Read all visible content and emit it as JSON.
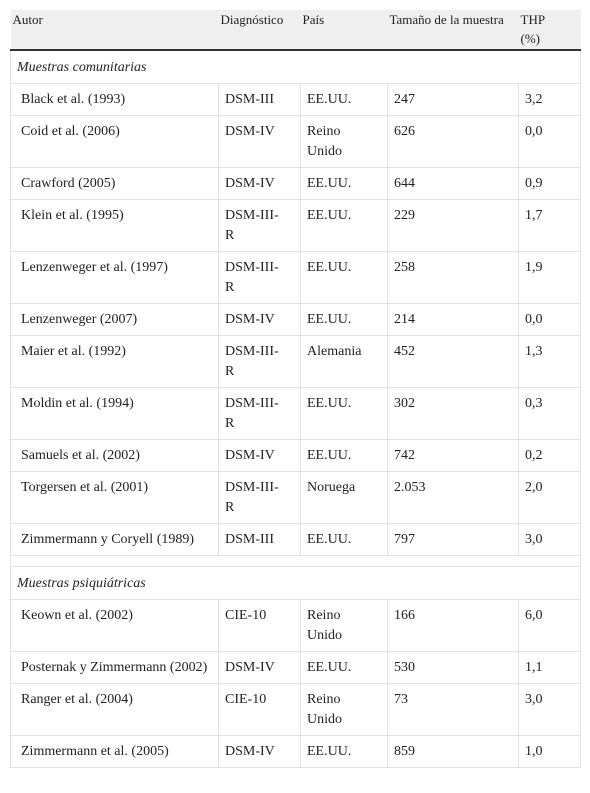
{
  "table": {
    "headers": [
      "Autor",
      "Diagnóstico",
      "País",
      "Tamaño de la muestra",
      "THP (%)"
    ],
    "sections": [
      {
        "title": "Muestras comunitarias",
        "rows": [
          [
            "Black et al. (1993)",
            "DSM-III",
            "EE.UU.",
            "247",
            "3,2"
          ],
          [
            "Coid et al. (2006)",
            "DSM-IV",
            "Reino Unido",
            "626",
            "0,0"
          ],
          [
            "Crawford (2005)",
            "DSM-IV",
            "EE.UU.",
            "644",
            "0,9"
          ],
          [
            "Klein et al. (1995)",
            "DSM-III-R",
            "EE.UU.",
            "229",
            "1,7"
          ],
          [
            "Lenzenweger et al. (1997)",
            "DSM-III-R",
            "EE.UU.",
            "258",
            "1,9"
          ],
          [
            "Lenzenweger (2007)",
            "DSM-IV",
            "EE.UU.",
            "214",
            "0,0"
          ],
          [
            "Maier et al. (1992)",
            "DSM-III-R",
            "Alemania",
            "452",
            "1,3"
          ],
          [
            "Moldin et al. (1994)",
            "DSM-III-R",
            "EE.UU.",
            "302",
            "0,3"
          ],
          [
            "Samuels et al. (2002)",
            "DSM-IV",
            "EE.UU.",
            "742",
            "0,2"
          ],
          [
            "Torgersen et al. (2001)",
            "DSM-III-R",
            "Noruega",
            "2.053",
            "2,0"
          ],
          [
            "Zimmermann y Coryell (1989)",
            "DSM-III",
            "EE.UU.",
            "797",
            "3,0"
          ]
        ]
      },
      {
        "title": "Muestras psiquiátricas",
        "rows": [
          [
            "Keown et al. (2002)",
            "CIE-10",
            "Reino Unido",
            "166",
            "6,0"
          ],
          [
            "Posternak y Zimmermann (2002)",
            "DSM-IV",
            "EE.UU.",
            "530",
            "1,1"
          ],
          [
            "Ranger et al. (2004)",
            "CIE-10",
            "Reino Unido",
            "73",
            "3,0"
          ],
          [
            "Zimmermann et al. (2005)",
            "DSM-IV",
            "EE.UU.",
            "859",
            "1,0"
          ]
        ]
      }
    ]
  }
}
